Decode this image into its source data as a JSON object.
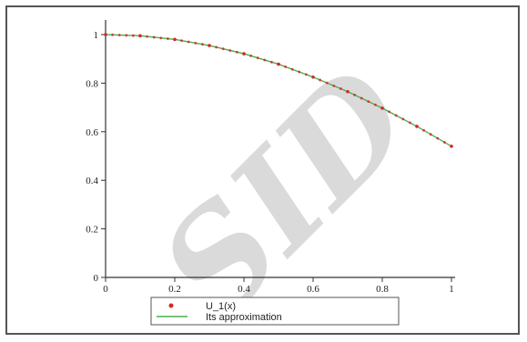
{
  "chart_data": {
    "type": "line",
    "title": "",
    "xlabel": "",
    "ylabel": "",
    "xlim": [
      0,
      1
    ],
    "ylim": [
      0,
      1.06
    ],
    "xticks": [
      0,
      0.2,
      0.4,
      0.6,
      0.8,
      1
    ],
    "xtick_labels": [
      "0",
      "0.2",
      "0.4",
      "0.6",
      "0.8",
      "1"
    ],
    "yticks": [
      0,
      0.2,
      0.4,
      0.6,
      0.8,
      1
    ],
    "ytick_labels": [
      "0",
      "0.2",
      "0.4",
      "0.6",
      "0.8",
      "1"
    ],
    "grid": false,
    "legend_position": "bottom-center",
    "x": [
      0,
      0.1,
      0.2,
      0.3,
      0.4,
      0.5,
      0.6,
      0.7,
      0.8,
      0.9,
      1.0
    ],
    "series": [
      {
        "name": "U_1(x)",
        "style": "points",
        "color": "#d62728",
        "values": [
          1.0,
          0.995,
          0.98,
          0.955,
          0.921,
          0.878,
          0.825,
          0.765,
          0.697,
          0.622,
          0.54
        ]
      },
      {
        "name": "Its approximation",
        "style": "line",
        "color": "#4caf50",
        "values": [
          1.0,
          0.995,
          0.98,
          0.955,
          0.921,
          0.878,
          0.825,
          0.765,
          0.697,
          0.622,
          0.54
        ]
      }
    ]
  },
  "watermark": {
    "text": "SID",
    "color": "#bdbdbd"
  }
}
